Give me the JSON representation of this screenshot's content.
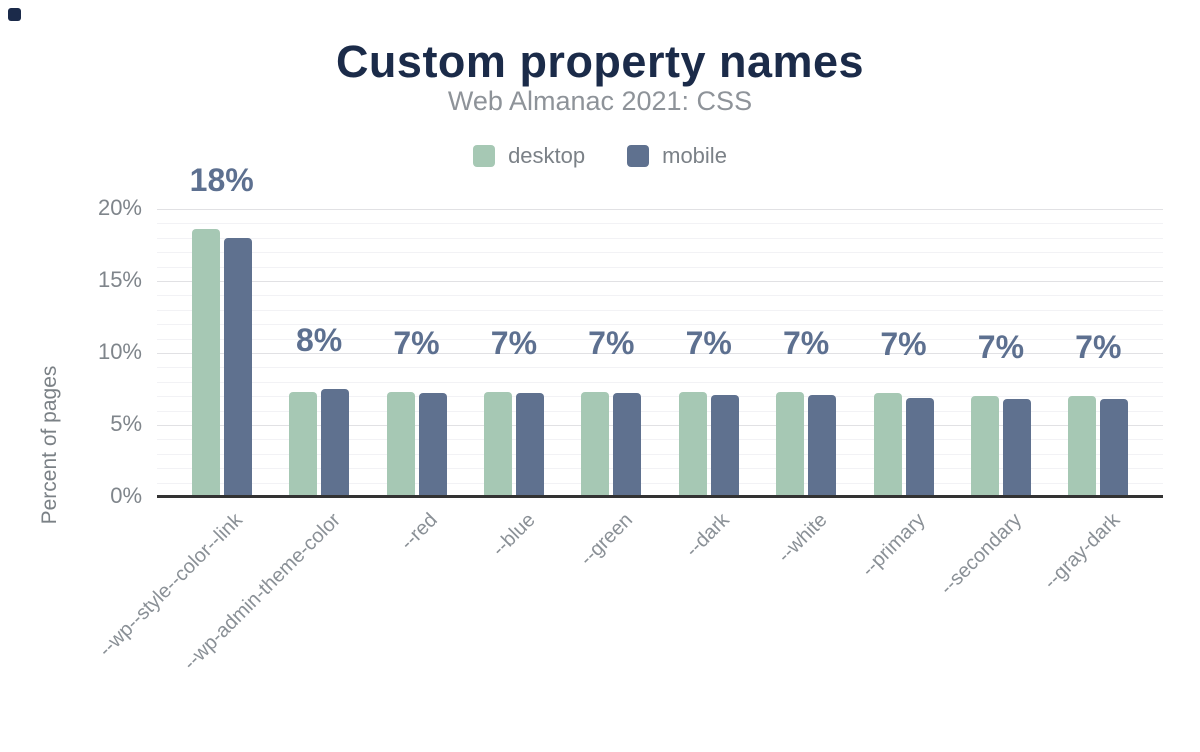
{
  "header": {
    "title": "Custom property names",
    "subtitle": "Web Almanac 2021: CSS"
  },
  "legend": [
    {
      "label": "desktop",
      "color": "#a6c8b4"
    },
    {
      "label": "mobile",
      "color": "#5f718f"
    }
  ],
  "chart_data": {
    "type": "bar",
    "title": "Custom property names",
    "subtitle": "Web Almanac 2021: CSS",
    "xlabel": "",
    "ylabel": "Percent of pages",
    "ylim": [
      0,
      20.8
    ],
    "grid": "major every 5%, minor every 1%",
    "legend_position": "top-center",
    "categories": [
      "--wp--style--color--link",
      "--wp-admin-theme-color",
      "--red",
      "--blue",
      "--green",
      "--dark",
      "--white",
      "--primary",
      "--secondary",
      "--gray-dark"
    ],
    "series": [
      {
        "name": "desktop",
        "color": "#a6c8b4",
        "values": [
          18.6,
          7.3,
          7.3,
          7.3,
          7.3,
          7.3,
          7.3,
          7.2,
          7.0,
          7.0
        ]
      },
      {
        "name": "mobile",
        "color": "#5f718f",
        "values": [
          18.0,
          7.5,
          7.2,
          7.2,
          7.2,
          7.1,
          7.1,
          6.9,
          6.8,
          6.8
        ]
      }
    ],
    "bar_labels": [
      "18%",
      "8%",
      "7%",
      "7%",
      "7%",
      "7%",
      "7%",
      "7%",
      "7%",
      "7%"
    ],
    "yticks": [
      {
        "value": 0,
        "label": "0%"
      },
      {
        "value": 5,
        "label": "5%"
      },
      {
        "value": 10,
        "label": "10%"
      },
      {
        "value": 15,
        "label": "15%"
      },
      {
        "value": 20,
        "label": "20%"
      }
    ]
  },
  "colors": {
    "title": "#1b2b49",
    "subtitle": "#8e9399",
    "legend_text": "#7b8187",
    "y_tick_text": "#7f858b",
    "y_axis_title_text": "#7b8186",
    "x_label_text": "#8a9096",
    "value_label_text": "#5d7090",
    "grid_major": "#e1e1e4",
    "grid_minor": "#f2f2f5",
    "axis_line": "#333333",
    "corner_mark": "#1b2a4a",
    "background": "#ffffff"
  }
}
